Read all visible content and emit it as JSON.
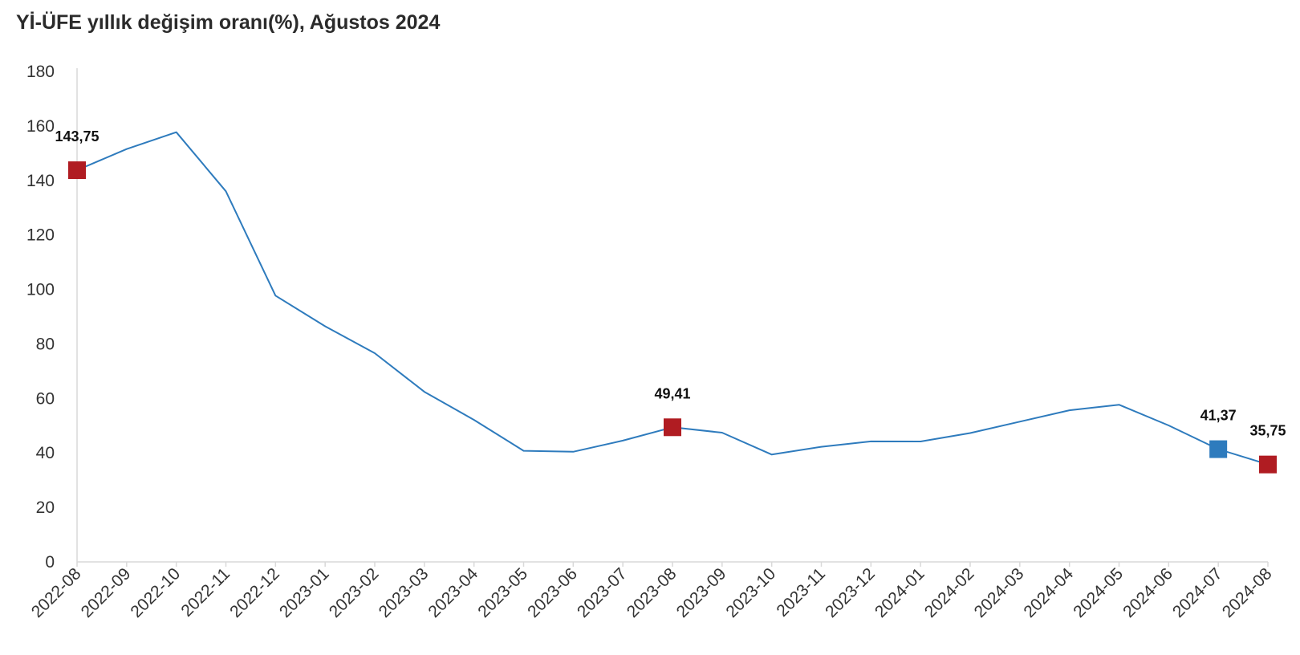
{
  "chart_data": {
    "type": "line",
    "title": "Yİ-ÜFE yıllık değişim oranı(%), Ağustos 2024",
    "xlabel": "",
    "ylabel": "",
    "ylim": [
      0,
      180
    ],
    "yticks": [
      0,
      20,
      40,
      60,
      80,
      100,
      120,
      140,
      160,
      180
    ],
    "grid": false,
    "legend": "none",
    "categories": [
      "2022-08",
      "2022-09",
      "2022-10",
      "2022-11",
      "2022-12",
      "2023-01",
      "2023-02",
      "2023-03",
      "2023-04",
      "2023-05",
      "2023-06",
      "2023-07",
      "2023-08",
      "2023-09",
      "2023-10",
      "2023-11",
      "2023-12",
      "2024-01",
      "2024-02",
      "2024-03",
      "2024-04",
      "2024-05",
      "2024-06",
      "2024-07",
      "2024-08"
    ],
    "series": [
      {
        "color": "#2e7bbd",
        "values": [
          143.75,
          151.5,
          157.69,
          136.02,
          97.72,
          86.46,
          76.61,
          62.43,
          52.11,
          40.76,
          40.42,
          44.5,
          49.41,
          47.44,
          39.39,
          42.25,
          44.22,
          44.2,
          47.29,
          51.47,
          55.66,
          57.68,
          50.09,
          41.37,
          35.75
        ]
      }
    ],
    "highlighted_points": [
      {
        "category": "2022-08",
        "value": 143.75,
        "label": "143,75",
        "color": "#b01c22"
      },
      {
        "category": "2023-08",
        "value": 49.41,
        "label": "49,41",
        "color": "#b01c22"
      },
      {
        "category": "2024-07",
        "value": 41.37,
        "label": "41,37",
        "color": "#2e7bbd"
      },
      {
        "category": "2024-08",
        "value": 35.75,
        "label": "35,75",
        "color": "#b01c22"
      }
    ],
    "axis_color": "#d9d9d9"
  }
}
